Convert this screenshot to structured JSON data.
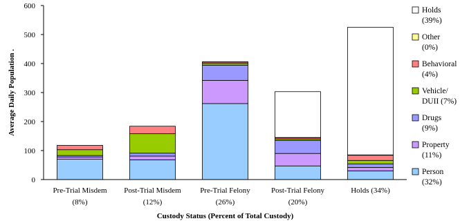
{
  "chart_data": {
    "type": "bar",
    "stacked": true,
    "categories": [
      [
        "Pre-Trial Misdem",
        "(8%)"
      ],
      [
        "Post-Trial Misdem",
        "(12%)"
      ],
      [
        "Pre-Trial Felony",
        "(26%)"
      ],
      [
        "Post-Trial Felony",
        "(20%)"
      ],
      [
        "Holds (34%)",
        ""
      ]
    ],
    "series": [
      {
        "name": [
          "Person",
          "(32%)"
        ],
        "color": "#99ccff",
        "values": [
          70,
          68,
          262,
          47,
          30
        ]
      },
      {
        "name": [
          "Property",
          "(11%)"
        ],
        "color": "#cc99ff",
        "values": [
          8,
          13,
          80,
          43,
          12
        ]
      },
      {
        "name": [
          "Drugs",
          "(9%)"
        ],
        "color": "#9999ff",
        "values": [
          5,
          10,
          52,
          45,
          12
        ]
      },
      {
        "name": [
          "Vehicle/",
          "DUII (7%)"
        ],
        "color": "#99cc00",
        "values": [
          20,
          67,
          6,
          5,
          12
        ]
      },
      {
        "name": [
          "Behavioral",
          "(4%)"
        ],
        "color": "#ff8080",
        "values": [
          15,
          26,
          5,
          4,
          18
        ]
      },
      {
        "name": [
          "Other",
          "(0%)"
        ],
        "color": "#ffff99",
        "values": [
          0,
          0,
          1,
          1,
          1
        ]
      },
      {
        "name": [
          "Holds",
          "(39%)"
        ],
        "color": "#ffffff",
        "values": [
          0,
          0,
          0,
          158,
          440
        ]
      }
    ],
    "ylim": [
      0,
      600
    ],
    "yticks": [
      0,
      100,
      200,
      300,
      400,
      500,
      600
    ],
    "xlabel": "Custody Status (Percent of Total Custody)",
    "ylabel": "Average Daily Population .",
    "legend_position": "right",
    "grid": false
  }
}
